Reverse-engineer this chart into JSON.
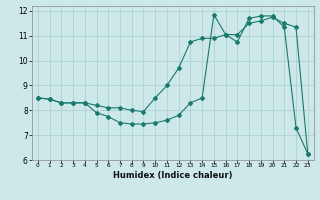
{
  "xlabel": "Humidex (Indice chaleur)",
  "xlim": [
    -0.5,
    23.5
  ],
  "ylim": [
    6,
    12.2
  ],
  "xticks": [
    0,
    1,
    2,
    3,
    4,
    5,
    6,
    7,
    8,
    9,
    10,
    11,
    12,
    13,
    14,
    15,
    16,
    17,
    18,
    19,
    20,
    21,
    22,
    23
  ],
  "yticks": [
    6,
    7,
    8,
    9,
    10,
    11,
    12
  ],
  "bg_color": "#cde8e8",
  "line_color": "#1a7a6e",
  "line1_x": [
    0,
    1,
    2,
    3,
    4,
    5,
    6,
    7,
    8,
    9,
    10,
    11,
    12,
    13,
    14,
    15,
    16,
    17,
    18,
    19,
    20,
    21,
    22,
    23
  ],
  "line1_y": [
    8.5,
    8.45,
    8.3,
    8.3,
    8.3,
    7.9,
    7.75,
    7.5,
    7.45,
    7.45,
    7.5,
    7.6,
    7.8,
    8.3,
    8.5,
    11.85,
    11.05,
    10.75,
    11.7,
    11.8,
    11.8,
    11.35,
    7.3,
    6.25
  ],
  "line2_x": [
    0,
    1,
    2,
    3,
    4,
    5,
    6,
    7,
    8,
    9,
    10,
    11,
    12,
    13,
    14,
    15,
    16,
    17,
    18,
    19,
    20,
    21,
    22,
    23
  ],
  "line2_y": [
    8.5,
    8.45,
    8.3,
    8.3,
    8.3,
    8.2,
    8.1,
    8.1,
    8.0,
    7.95,
    8.5,
    9.0,
    9.7,
    10.75,
    10.9,
    10.9,
    11.05,
    11.05,
    11.5,
    11.6,
    11.75,
    11.5,
    11.35,
    6.25
  ]
}
